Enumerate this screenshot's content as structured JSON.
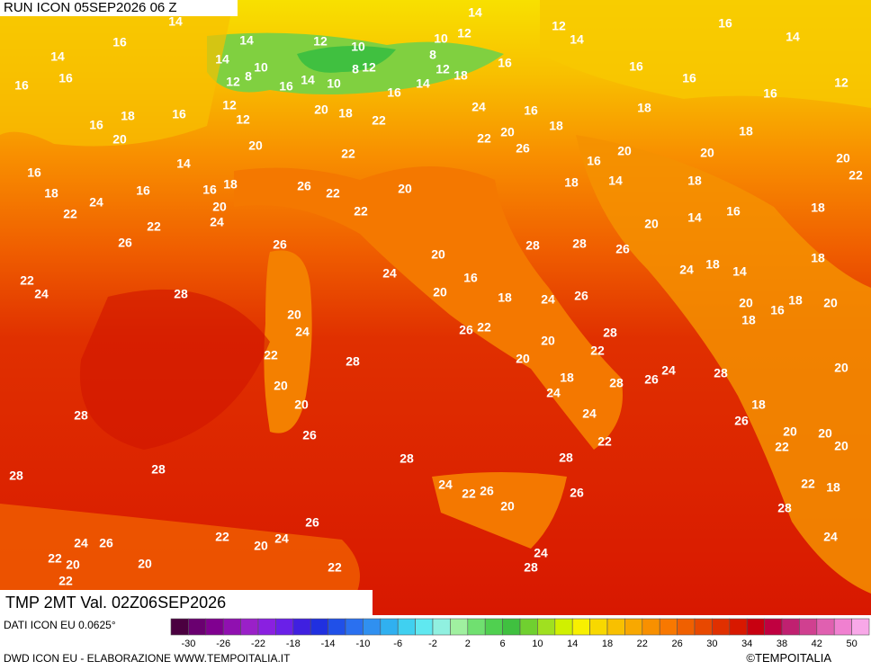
{
  "header": {
    "run": "RUN ICON 05SEP2026 06 Z",
    "validity": "TMP 2MT Val. 02Z06SEP2026"
  },
  "map": {
    "temperature_labels": [
      14,
      14,
      12,
      16,
      14,
      16,
      14,
      12,
      10,
      10,
      12,
      14,
      14,
      14,
      10,
      8,
      8,
      12,
      8,
      16,
      16,
      16,
      16,
      12,
      16,
      14,
      10,
      16,
      14,
      12,
      18,
      16,
      16,
      12,
      18,
      16,
      12,
      20,
      18,
      22,
      24,
      16,
      18,
      16,
      20,
      12,
      20,
      22,
      20,
      18,
      18,
      22,
      26,
      20,
      20,
      20,
      16,
      14,
      16,
      22,
      18,
      24,
      16,
      16,
      18,
      26,
      22,
      20,
      18,
      14,
      18,
      22,
      20,
      22,
      20,
      14,
      16,
      18,
      22,
      24,
      26,
      26,
      28,
      28,
      26,
      18,
      20,
      24,
      18,
      14,
      22,
      24,
      24,
      16,
      28,
      20,
      18,
      24,
      26,
      20,
      18,
      16,
      20,
      20,
      18,
      26,
      22,
      24,
      28,
      20,
      22,
      28,
      20,
      22,
      24,
      28,
      20,
      18,
      26,
      28,
      20,
      24,
      18,
      20,
      24,
      26,
      28,
      20,
      20,
      26,
      22,
      22,
      20,
      28,
      28,
      28,
      28,
      24,
      22,
      26,
      26,
      22,
      18,
      20,
      28,
      26,
      22,
      24,
      26,
      20,
      24,
      24,
      22,
      20,
      20,
      22,
      24,
      28,
      22
    ]
  },
  "colorbar": {
    "source": "DATI ICON EU 0.0625°",
    "colors": [
      "#4b0040",
      "#6a0070",
      "#800090",
      "#9010b0",
      "#9a20c8",
      "#8a20e0",
      "#6a20e8",
      "#4020e0",
      "#2030e0",
      "#2050e8",
      "#2a70f0",
      "#3090f0",
      "#30b0f0",
      "#40d0f0",
      "#60e8f0",
      "#90f0e0",
      "#a0f0a0",
      "#70e070",
      "#50d050",
      "#40c040",
      "#70d030",
      "#a0e020",
      "#d0f000",
      "#f8f000",
      "#f8d800",
      "#f8c000",
      "#f8a800",
      "#f89000",
      "#f87800",
      "#f06000",
      "#e84800",
      "#e03000",
      "#d81800",
      "#c80010",
      "#c00040",
      "#c02070",
      "#d04090",
      "#e060b0",
      "#f080d0",
      "#f8a8e8"
    ],
    "labels": [
      -30,
      -26,
      -22,
      -18,
      -14,
      -10,
      -6,
      -2,
      2,
      6,
      10,
      14,
      18,
      22,
      26,
      30,
      34,
      38,
      42,
      50
    ]
  },
  "footer": {
    "credit": "DWD ICON EU - ELABORAZIONE WWW.TEMPOITALIA.IT",
    "copyright": "©TEMPOITALIA"
  }
}
